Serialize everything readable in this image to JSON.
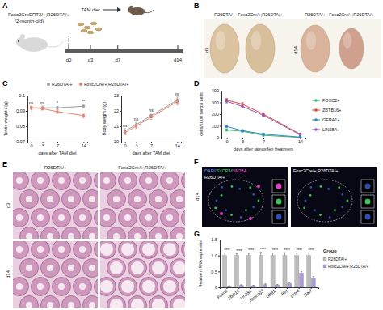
{
  "panels": {
    "labels": [
      "A",
      "B",
      "C",
      "D",
      "E",
      "F",
      "G"
    ]
  },
  "diagram": {
    "mouse_label": "Foxc2CreERT2/+;R26DTA/+",
    "age": "(2-month-old)",
    "diet": "TAM diet",
    "timepoints": [
      "d0",
      "d3",
      "d7",
      "d14"
    ]
  },
  "photos_b": {
    "groups": [
      "R26DTA/+",
      "Foxc2Cre/+;R26DTA/+",
      "R26DTA/+",
      "Foxc2Cre/+;R26DTA/+"
    ],
    "days": [
      "d3",
      "d14"
    ]
  },
  "photos_e": {
    "groups": [
      "R26DTA/+",
      "Foxc2Cre/+;R26DTA/+"
    ],
    "days": [
      "d3",
      "d14"
    ]
  },
  "photos_f": {
    "stain": [
      "DAPI/",
      "SYCP3/",
      "LIN28A"
    ],
    "groups": [
      "R26DTA/+",
      "Foxc2Cre/+;R26DTA/+"
    ],
    "day": "d14"
  },
  "chart_data": [
    {
      "type": "line",
      "y_label": "Testis weight / (g)",
      "x_label": "days after TAM diet",
      "marker": "circle",
      "legend": "top",
      "x": [
        0,
        3,
        7,
        14
      ],
      "xlim": [
        -1,
        15
      ],
      "xticks": [
        0,
        3,
        7,
        14
      ],
      "ylim": [
        0.07,
        0.1
      ],
      "yticks": [
        0.07,
        0.08,
        0.09,
        0.1
      ],
      "series": [
        {
          "name": "R26DTA/+",
          "color": "#9e9e9e",
          "values": [
            0.092,
            0.092,
            0.092,
            0.093
          ],
          "errors": [
            0.001,
            0.0012,
            0.001,
            0.001
          ]
        },
        {
          "name": "Foxc2Cre/+;R26DTA/+",
          "color": "#e8836b",
          "values": [
            0.092,
            0.0915,
            0.0895,
            0.087
          ],
          "errors": [
            0.001,
            0.001,
            0.0012,
            0.0015
          ]
        }
      ],
      "annotations": [
        "ns",
        "ns",
        "*",
        "**"
      ]
    },
    {
      "type": "line",
      "y_label": "Body weight / (g)",
      "x_label": "days after TAM diet",
      "marker": "circle",
      "x": [
        0,
        3,
        7,
        14
      ],
      "xlim": [
        -1,
        15
      ],
      "xticks": [
        0,
        3,
        7,
        14
      ],
      "ylim": [
        20,
        23
      ],
      "yticks": [
        20,
        21,
        22,
        23
      ],
      "series": [
        {
          "color": "#9e9e9e",
          "values": [
            20.7,
            21.1,
            21.7,
            22.7
          ],
          "errors": [
            0.15,
            0.15,
            0.15,
            0.2
          ]
        },
        {
          "color": "#e8836b",
          "values": [
            20.6,
            21.0,
            21.6,
            22.6
          ],
          "errors": [
            0.15,
            0.15,
            0.15,
            0.2
          ]
        }
      ],
      "annotations": [
        "ns",
        "ns",
        "ns",
        "ns"
      ]
    },
    {
      "type": "line",
      "y_label": "cells/1000 sertoli cells",
      "x_label": "days after tamoxifen treatment",
      "marker": "circle",
      "legend": "right",
      "x": [
        0,
        3,
        7,
        14
      ],
      "xlim": [
        -1,
        15
      ],
      "xticks": [
        0,
        3,
        7,
        14
      ],
      "ylim": [
        0,
        400
      ],
      "yticks": [
        0,
        100,
        200,
        300,
        400
      ],
      "series": [
        {
          "name": "FOXC2+",
          "color": "#3cb371",
          "values": [
            65,
            55,
            20,
            2
          ],
          "errors": [
            8,
            8,
            5,
            1
          ]
        },
        {
          "name": "ZBTB16+",
          "color": "#e0483a",
          "values": [
            320,
            285,
            200,
            30
          ],
          "errors": [
            15,
            15,
            12,
            5
          ]
        },
        {
          "name": "GFRA1+",
          "color": "#2e8bcc",
          "values": [
            95,
            60,
            30,
            5
          ],
          "errors": [
            10,
            8,
            5,
            2
          ]
        },
        {
          "name": "LIN28A+",
          "color": "#8e5bb5",
          "values": [
            310,
            265,
            190,
            25
          ],
          "errors": [
            15,
            12,
            10,
            4
          ]
        }
      ]
    },
    {
      "type": "bar",
      "y_label": "Relative mRNA expression",
      "legend": "right",
      "legend_title": "Group",
      "categories": [
        "Foxc2",
        "Zbtb16",
        "Lin28a",
        "Neurog3",
        "Gfra1",
        "Ret",
        "Ddx4",
        "Dazl"
      ],
      "ylim": [
        0,
        1.5
      ],
      "yticks": [
        0,
        0.5,
        {
          "value": 1,
          "label": "1.0"
        },
        1.5
      ],
      "series": [
        {
          "name": "R26DTA/+",
          "color": "#bdbdbd",
          "values": [
            1,
            1,
            1,
            1,
            1,
            1,
            1,
            1
          ],
          "errors": [
            0.08,
            0.06,
            0.07,
            0.1,
            0.08,
            0.09,
            0.07,
            0.08
          ]
        },
        {
          "name": "Foxc2Cre/+;R26DTA/+",
          "color": "#a99bd8",
          "values": [
            0.04,
            0.06,
            0.05,
            0.08,
            0.07,
            0.12,
            0.45,
            0.3
          ],
          "errors": [
            0.01,
            0.02,
            0.01,
            0.03,
            0.02,
            0.03,
            0.05,
            0.04
          ]
        }
      ],
      "annotations": [
        "****",
        "****",
        "****",
        "****",
        "****",
        "****",
        "****",
        "****"
      ]
    }
  ]
}
